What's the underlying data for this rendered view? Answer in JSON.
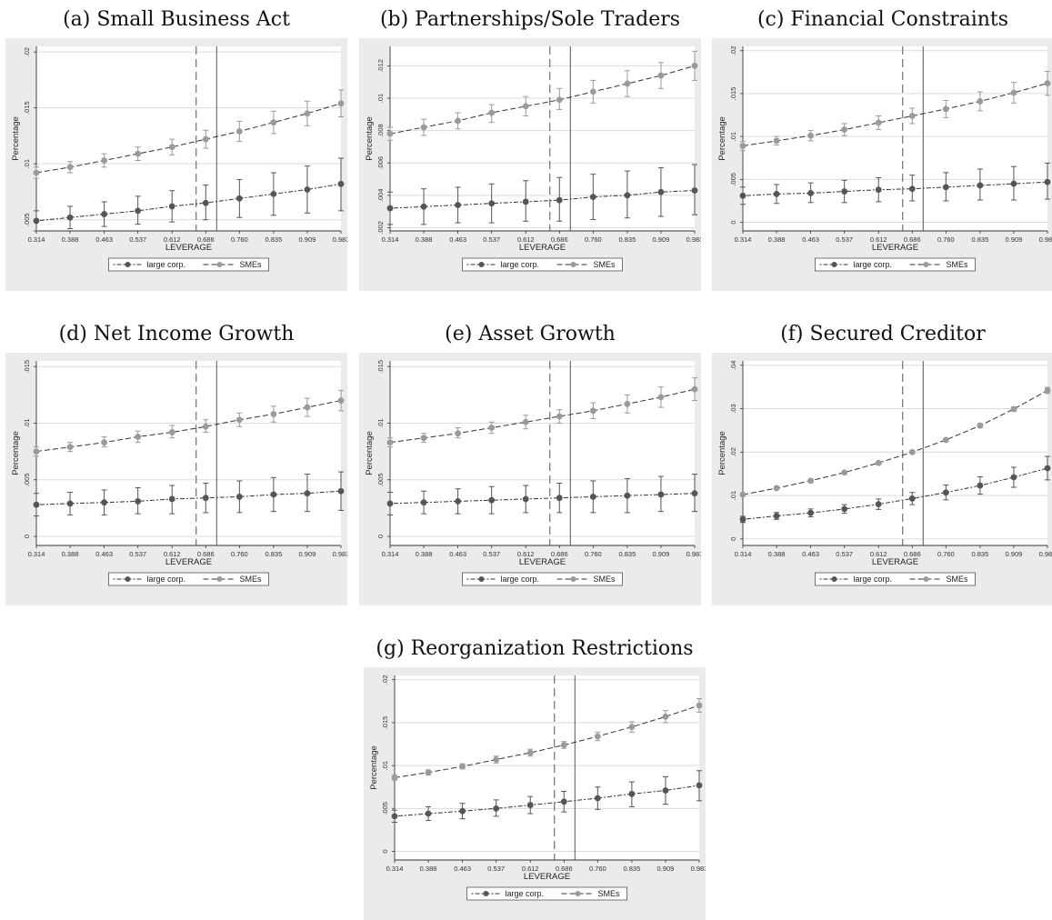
{
  "colors": {
    "large_corp": "#555555",
    "smes": "#9a9a9a",
    "panel_bg": "#ebebeb",
    "grid": "#dcdcdc"
  },
  "legend": {
    "large": "large corp.",
    "smes": "SMEs"
  },
  "chart_data": [
    {
      "type": "line",
      "title": "(a) Small Business Act",
      "xlabel": "LEVERAGE",
      "ylabel": "Percentage",
      "categories": [
        "0.314",
        "0.388",
        "0.463",
        "0.537",
        "0.612",
        "0.686",
        "0.760",
        "0.835",
        "0.909",
        "0.983"
      ],
      "x": [
        0.314,
        0.388,
        0.463,
        0.537,
        0.612,
        0.686,
        0.76,
        0.835,
        0.909,
        0.983
      ],
      "ylim": [
        0.004,
        0.0205
      ],
      "yticks": [
        0.005,
        0.01,
        0.015,
        0.02
      ],
      "ytick_labels": [
        ".005",
        ".01",
        ".015",
        ".02"
      ],
      "dashed_vline": 0.665,
      "solid_vline": 0.71,
      "grid": true,
      "legend_position": "bottom",
      "series": [
        {
          "name": "large corp.",
          "style": "dash-dot",
          "values": [
            0.0049,
            0.0052,
            0.0055,
            0.0058,
            0.0062,
            0.0065,
            0.0069,
            0.0073,
            0.0077,
            0.0082
          ],
          "lower": [
            0.004,
            0.0042,
            0.0044,
            0.0046,
            0.0048,
            0.005,
            0.0052,
            0.0054,
            0.0056,
            0.0058
          ],
          "upper": [
            0.0058,
            0.0062,
            0.0066,
            0.0071,
            0.0076,
            0.0081,
            0.0086,
            0.0092,
            0.0098,
            0.0105
          ]
        },
        {
          "name": "SMEs",
          "style": "dashed",
          "values": [
            0.0092,
            0.0097,
            0.0103,
            0.0109,
            0.0115,
            0.0122,
            0.0129,
            0.0137,
            0.0145,
            0.0154
          ],
          "lower": [
            0.0087,
            0.0092,
            0.0097,
            0.0103,
            0.0108,
            0.0114,
            0.012,
            0.0127,
            0.0134,
            0.0142
          ],
          "upper": [
            0.0097,
            0.0102,
            0.0109,
            0.0115,
            0.0122,
            0.013,
            0.0138,
            0.0147,
            0.0156,
            0.0166
          ]
        }
      ]
    },
    {
      "type": "line",
      "title": "(b) Partnerships/Sole Traders",
      "xlabel": "LEVERAGE",
      "ylabel": "Percentage",
      "categories": [
        "0.314",
        "0.388",
        "0.463",
        "0.537",
        "0.612",
        "0.686",
        "0.760",
        "0.835",
        "0.909",
        "0.983"
      ],
      "x": [
        0.314,
        0.388,
        0.463,
        0.537,
        0.612,
        0.686,
        0.76,
        0.835,
        0.909,
        0.983
      ],
      "ylim": [
        0.0018,
        0.0132
      ],
      "yticks": [
        0.002,
        0.004,
        0.006,
        0.008,
        0.01,
        0.012
      ],
      "ytick_labels": [
        ".002",
        ".004",
        ".006",
        ".008",
        ".01",
        ".012"
      ],
      "dashed_vline": 0.665,
      "solid_vline": 0.71,
      "grid": true,
      "legend_position": "bottom",
      "series": [
        {
          "name": "large corp.",
          "style": "dash-dot",
          "values": [
            0.0032,
            0.0033,
            0.0034,
            0.0035,
            0.0036,
            0.0037,
            0.0039,
            0.004,
            0.0042,
            0.0043
          ],
          "lower": [
            0.0022,
            0.0022,
            0.0023,
            0.0023,
            0.0024,
            0.0024,
            0.0025,
            0.0026,
            0.0027,
            0.0028
          ],
          "upper": [
            0.0042,
            0.0044,
            0.0045,
            0.0047,
            0.0049,
            0.0051,
            0.0053,
            0.0055,
            0.0057,
            0.0059
          ]
        },
        {
          "name": "SMEs",
          "style": "dashed",
          "values": [
            0.0078,
            0.0082,
            0.0086,
            0.0091,
            0.0095,
            0.0099,
            0.0104,
            0.0109,
            0.0114,
            0.012
          ],
          "lower": [
            0.0074,
            0.0077,
            0.0081,
            0.0085,
            0.0089,
            0.0093,
            0.0097,
            0.0101,
            0.0106,
            0.0111
          ],
          "upper": [
            0.0082,
            0.0087,
            0.0091,
            0.0096,
            0.0101,
            0.0106,
            0.0111,
            0.0117,
            0.0122,
            0.0129
          ]
        }
      ]
    },
    {
      "type": "line",
      "title": "(c) Financial Constraints",
      "xlabel": "LEVERAGE",
      "ylabel": "Percentage",
      "categories": [
        "0.314",
        "0.388",
        "0.463",
        "0.537",
        "0.612",
        "0.686",
        "0.760",
        "0.835",
        "0.909",
        "0.983"
      ],
      "x": [
        0.314,
        0.388,
        0.463,
        0.537,
        0.612,
        0.686,
        0.76,
        0.835,
        0.909,
        0.983
      ],
      "ylim": [
        -0.001,
        0.0205
      ],
      "yticks": [
        0,
        0.005,
        0.01,
        0.015,
        0.02
      ],
      "ytick_labels": [
        "0",
        ".005",
        ".01",
        ".015",
        ".02"
      ],
      "dashed_vline": 0.665,
      "solid_vline": 0.71,
      "grid": true,
      "legend_position": "bottom",
      "series": [
        {
          "name": "large corp.",
          "style": "dash-dot",
          "values": [
            0.0031,
            0.0033,
            0.0034,
            0.0036,
            0.0038,
            0.0039,
            0.0041,
            0.0043,
            0.0045,
            0.0047
          ],
          "lower": [
            0.0021,
            0.0022,
            0.0023,
            0.0023,
            0.0024,
            0.0025,
            0.0025,
            0.0026,
            0.0026,
            0.0027
          ],
          "upper": [
            0.0041,
            0.0044,
            0.0046,
            0.0049,
            0.0052,
            0.0055,
            0.0058,
            0.0062,
            0.0065,
            0.0069
          ]
        },
        {
          "name": "SMEs",
          "style": "dashed",
          "values": [
            0.0089,
            0.0095,
            0.0101,
            0.0108,
            0.0116,
            0.0124,
            0.0132,
            0.0141,
            0.0151,
            0.0162
          ],
          "lower": [
            0.0084,
            0.009,
            0.0095,
            0.0101,
            0.0108,
            0.0115,
            0.0122,
            0.013,
            0.0139,
            0.0148
          ],
          "upper": [
            0.0094,
            0.01,
            0.0107,
            0.0115,
            0.0124,
            0.0133,
            0.0142,
            0.0152,
            0.0163,
            0.0176
          ]
        }
      ]
    },
    {
      "type": "line",
      "title": "(d) Net Income Growth",
      "xlabel": "LEVERAGE",
      "ylabel": "Percentage",
      "categories": [
        "0.314",
        "0.388",
        "0.463",
        "0.537",
        "0.612",
        "0.686",
        "0.760",
        "0.835",
        "0.909",
        "0.983"
      ],
      "x": [
        0.314,
        0.388,
        0.463,
        0.537,
        0.612,
        0.686,
        0.76,
        0.835,
        0.909,
        0.983
      ],
      "ylim": [
        -0.0008,
        0.0155
      ],
      "yticks": [
        0,
        0.005,
        0.01,
        0.015
      ],
      "ytick_labels": [
        "0",
        ".005",
        ".01",
        ".015"
      ],
      "dashed_vline": 0.665,
      "solid_vline": 0.71,
      "grid": true,
      "legend_position": "bottom",
      "series": [
        {
          "name": "large corp.",
          "style": "dash-dot",
          "values": [
            0.0028,
            0.0029,
            0.003,
            0.0031,
            0.0033,
            0.0034,
            0.0035,
            0.0037,
            0.0038,
            0.004
          ],
          "lower": [
            0.0018,
            0.0019,
            0.0019,
            0.002,
            0.002,
            0.0021,
            0.0021,
            0.0022,
            0.0022,
            0.0023
          ],
          "upper": [
            0.0038,
            0.0039,
            0.0041,
            0.0043,
            0.0045,
            0.0047,
            0.0049,
            0.0052,
            0.0055,
            0.0057
          ]
        },
        {
          "name": "SMEs",
          "style": "dashed",
          "values": [
            0.0075,
            0.0079,
            0.0083,
            0.0088,
            0.0092,
            0.0097,
            0.0103,
            0.0108,
            0.0114,
            0.012
          ],
          "lower": [
            0.0071,
            0.0075,
            0.0079,
            0.0083,
            0.0087,
            0.0092,
            0.0097,
            0.0101,
            0.0106,
            0.0111
          ],
          "upper": [
            0.0079,
            0.0083,
            0.0088,
            0.0093,
            0.0098,
            0.0103,
            0.0109,
            0.0115,
            0.0122,
            0.0129
          ]
        }
      ]
    },
    {
      "type": "line",
      "title": "(e) Asset Growth",
      "xlabel": "LEVERAGE",
      "ylabel": "Percentage",
      "categories": [
        "0.314",
        "0.388",
        "0.463",
        "0.537",
        "0.612",
        "0.686",
        "0.760",
        "0.835",
        "0.909",
        "0.983"
      ],
      "x": [
        0.314,
        0.388,
        0.463,
        0.537,
        0.612,
        0.686,
        0.76,
        0.835,
        0.909,
        0.983
      ],
      "ylim": [
        -0.0008,
        0.0155
      ],
      "yticks": [
        0,
        0.005,
        0.01,
        0.015
      ],
      "ytick_labels": [
        "0",
        ".005",
        ".01",
        ".015"
      ],
      "dashed_vline": 0.665,
      "solid_vline": 0.71,
      "grid": true,
      "legend_position": "bottom",
      "series": [
        {
          "name": "large corp.",
          "style": "dash-dot",
          "values": [
            0.0029,
            0.003,
            0.0031,
            0.0032,
            0.0033,
            0.0034,
            0.0035,
            0.0036,
            0.0037,
            0.0038
          ],
          "lower": [
            0.0019,
            0.002,
            0.002,
            0.002,
            0.0021,
            0.0021,
            0.0021,
            0.0021,
            0.0022,
            0.0022
          ],
          "upper": [
            0.0039,
            0.004,
            0.0042,
            0.0044,
            0.0045,
            0.0047,
            0.0049,
            0.0051,
            0.0053,
            0.0055
          ]
        },
        {
          "name": "SMEs",
          "style": "dashed",
          "values": [
            0.0083,
            0.0087,
            0.0091,
            0.0096,
            0.0101,
            0.0106,
            0.0111,
            0.0117,
            0.0123,
            0.013
          ],
          "lower": [
            0.0079,
            0.0083,
            0.0087,
            0.0091,
            0.0095,
            0.01,
            0.0104,
            0.0109,
            0.0114,
            0.012
          ],
          "upper": [
            0.0087,
            0.0091,
            0.0096,
            0.0101,
            0.0107,
            0.0112,
            0.0118,
            0.0125,
            0.0132,
            0.014
          ]
        }
      ]
    },
    {
      "type": "line",
      "title": "(f) Secured Creditor",
      "xlabel": "LEVERAGE",
      "ylabel": "Percentage",
      "categories": [
        "0.314",
        "0.388",
        "0.463",
        "0.537",
        "0.612",
        "0.686",
        "0.760",
        "0.835",
        "0.909",
        "0.983"
      ],
      "x": [
        0.314,
        0.388,
        0.463,
        0.537,
        0.612,
        0.686,
        0.76,
        0.835,
        0.909,
        0.983
      ],
      "ylim": [
        -0.0015,
        0.041
      ],
      "yticks": [
        0,
        0.01,
        0.02,
        0.03,
        0.04
      ],
      "ytick_labels": [
        "0",
        ".01",
        ".02",
        ".03",
        ".04"
      ],
      "dashed_vline": 0.665,
      "solid_vline": 0.71,
      "grid": true,
      "legend_position": "bottom",
      "series": [
        {
          "name": "large corp.",
          "style": "dash-dot",
          "values": [
            0.0045,
            0.0053,
            0.006,
            0.0069,
            0.008,
            0.0093,
            0.0107,
            0.0123,
            0.0142,
            0.0163
          ],
          "lower": [
            0.0038,
            0.0045,
            0.0051,
            0.0059,
            0.0068,
            0.0079,
            0.009,
            0.0103,
            0.0119,
            0.0136
          ],
          "upper": [
            0.0052,
            0.0061,
            0.0069,
            0.0079,
            0.0092,
            0.0107,
            0.0124,
            0.0143,
            0.0165,
            0.019
          ]
        },
        {
          "name": "SMEs",
          "style": "dashed",
          "values": [
            0.0102,
            0.0117,
            0.0134,
            0.0153,
            0.0175,
            0.02,
            0.0228,
            0.0261,
            0.0299,
            0.0342
          ],
          "lower": [
            0.0099,
            0.0114,
            0.0131,
            0.015,
            0.0172,
            0.0197,
            0.0225,
            0.0257,
            0.0294,
            0.0335
          ],
          "upper": [
            0.0105,
            0.012,
            0.0137,
            0.0156,
            0.0178,
            0.0203,
            0.0231,
            0.0265,
            0.0304,
            0.0349
          ]
        }
      ]
    },
    {
      "type": "line",
      "title": "(g) Reorganization Restrictions",
      "xlabel": "LEVERAGE",
      "ylabel": "Percentage",
      "categories": [
        "0.314",
        "0.388",
        "0.463",
        "0.537",
        "0.612",
        "0.686",
        "0.760",
        "0.835",
        "0.909",
        "0.983"
      ],
      "x": [
        0.314,
        0.388,
        0.463,
        0.537,
        0.612,
        0.686,
        0.76,
        0.835,
        0.909,
        0.983
      ],
      "ylim": [
        -0.001,
        0.0205
      ],
      "yticks": [
        0,
        0.005,
        0.01,
        0.015,
        0.02
      ],
      "ytick_labels": [
        "0",
        ".005",
        ".01",
        ".015",
        ".02"
      ],
      "dashed_vline": 0.665,
      "solid_vline": 0.71,
      "grid": true,
      "legend_position": "bottom",
      "series": [
        {
          "name": "large corp.",
          "style": "dash-dot",
          "values": [
            0.0041,
            0.0044,
            0.0047,
            0.005,
            0.0054,
            0.0058,
            0.0062,
            0.0067,
            0.0071,
            0.0077
          ],
          "lower": [
            0.0034,
            0.0036,
            0.0038,
            0.0041,
            0.0044,
            0.0046,
            0.0049,
            0.0052,
            0.0055,
            0.0059
          ],
          "upper": [
            0.0048,
            0.0052,
            0.0056,
            0.006,
            0.0064,
            0.007,
            0.0075,
            0.0081,
            0.0087,
            0.0094
          ]
        },
        {
          "name": "SMEs",
          "style": "dashed",
          "values": [
            0.0086,
            0.0092,
            0.0099,
            0.0107,
            0.0115,
            0.0124,
            0.0134,
            0.0145,
            0.0157,
            0.017
          ],
          "lower": [
            0.0083,
            0.0089,
            0.0096,
            0.0103,
            0.0111,
            0.012,
            0.0129,
            0.0139,
            0.015,
            0.0162
          ],
          "upper": [
            0.0089,
            0.0095,
            0.0102,
            0.0111,
            0.0119,
            0.0128,
            0.0139,
            0.0151,
            0.0164,
            0.0178
          ]
        }
      ]
    }
  ]
}
